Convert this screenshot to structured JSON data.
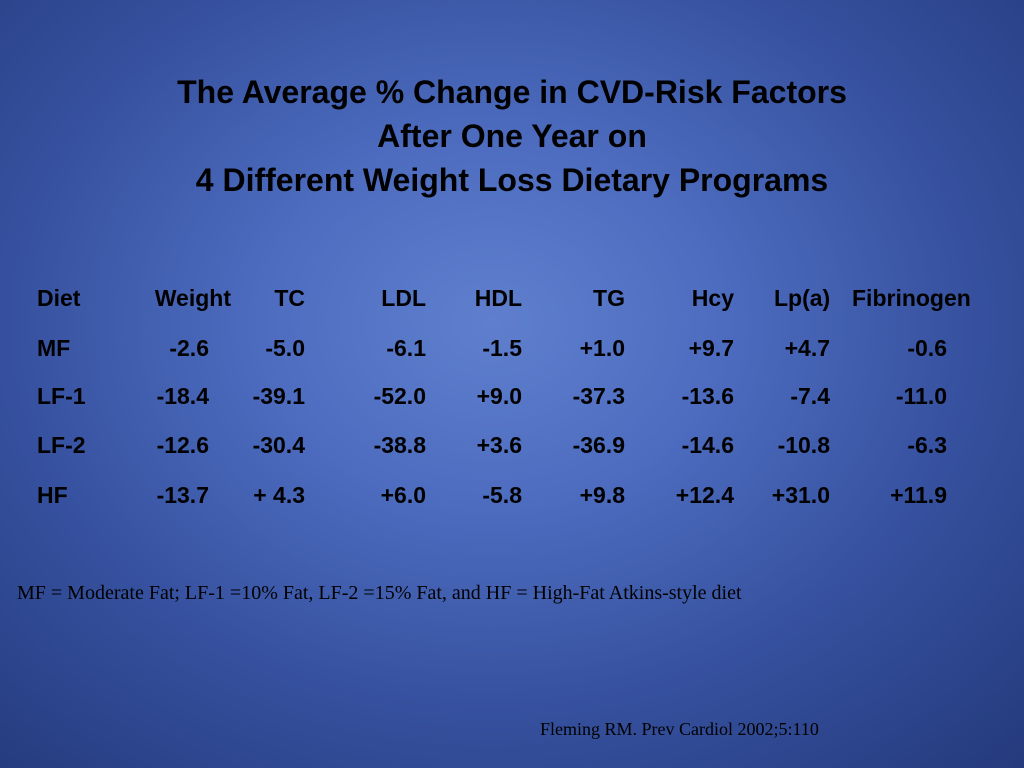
{
  "slide": {
    "title_lines": [
      "The Average % Change in CVD-Risk Factors",
      "After One Year on",
      "4 Different Weight Loss Dietary Programs"
    ],
    "table": {
      "headers": [
        "Diet",
        "Weight",
        "TC",
        "LDL",
        "HDL",
        "TG",
        "Hcy",
        "Lp(a)",
        "Fibrinogen"
      ],
      "rows": [
        [
          "MF",
          "-2.6",
          "-5.0",
          "-6.1",
          "-1.5",
          "+1.0",
          "+9.7",
          "+4.7",
          "-0.6"
        ],
        [
          "LF-1",
          "-18.4",
          "-39.1",
          "-52.0",
          "+9.0",
          "-37.3",
          "-13.6",
          "-7.4",
          "-11.0"
        ],
        [
          "LF-2",
          "-12.6",
          "-30.4",
          "-38.8",
          "+3.6",
          "-36.9",
          "-14.6",
          "-10.8",
          "-6.3"
        ],
        [
          "HF",
          "-13.7",
          "+ 4.3",
          "+6.0",
          "-5.8",
          "+9.8",
          "+12.4",
          "+31.0",
          "+11.9"
        ]
      ]
    },
    "footnote": "MF = Moderate Fat; LF-1 =10% Fat, LF-2 =15% Fat, and HF = High-Fat Atkins-style diet",
    "citation": "Fleming RM. Prev Cardiol 2002;5:110"
  }
}
